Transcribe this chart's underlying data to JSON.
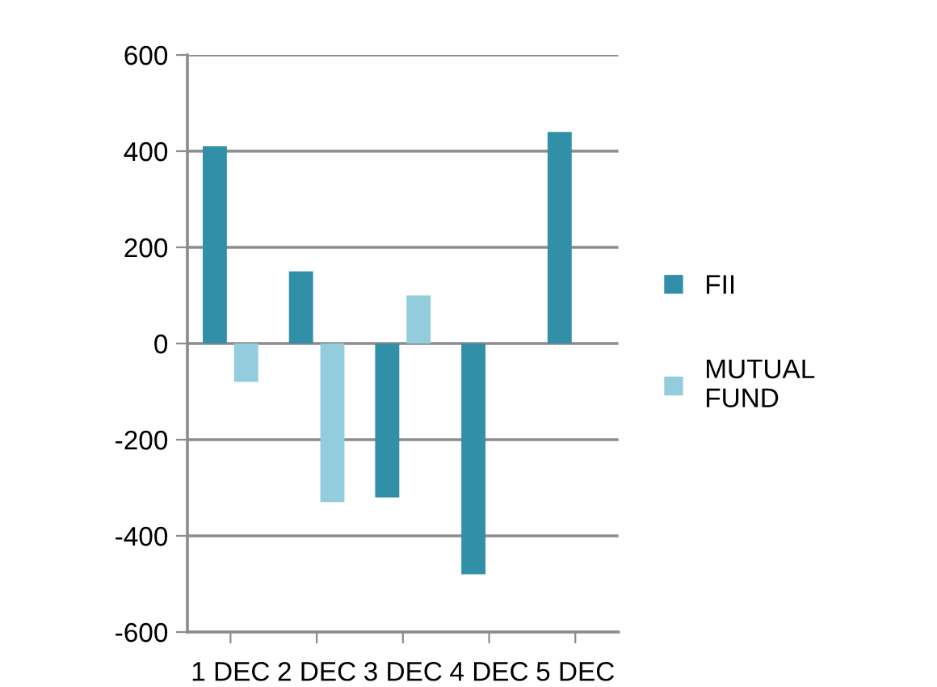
{
  "chart_data": {
    "type": "bar",
    "categories": [
      "1 DEC",
      "2 DEC",
      "3 DEC",
      "4 DEC",
      "5 DEC"
    ],
    "series": [
      {
        "name": "FII",
        "color": "#3190a8",
        "values": [
          410,
          150,
          -320,
          -480,
          440
        ]
      },
      {
        "name": "MUTUAL FUND",
        "color": "#93cddd",
        "values": [
          -80,
          -330,
          100,
          null,
          null
        ]
      }
    ],
    "ylim": [
      -600,
      600
    ],
    "yticks": [
      -600,
      -400,
      -200,
      0,
      200,
      400,
      600
    ],
    "grid": "y",
    "legend": "right"
  }
}
